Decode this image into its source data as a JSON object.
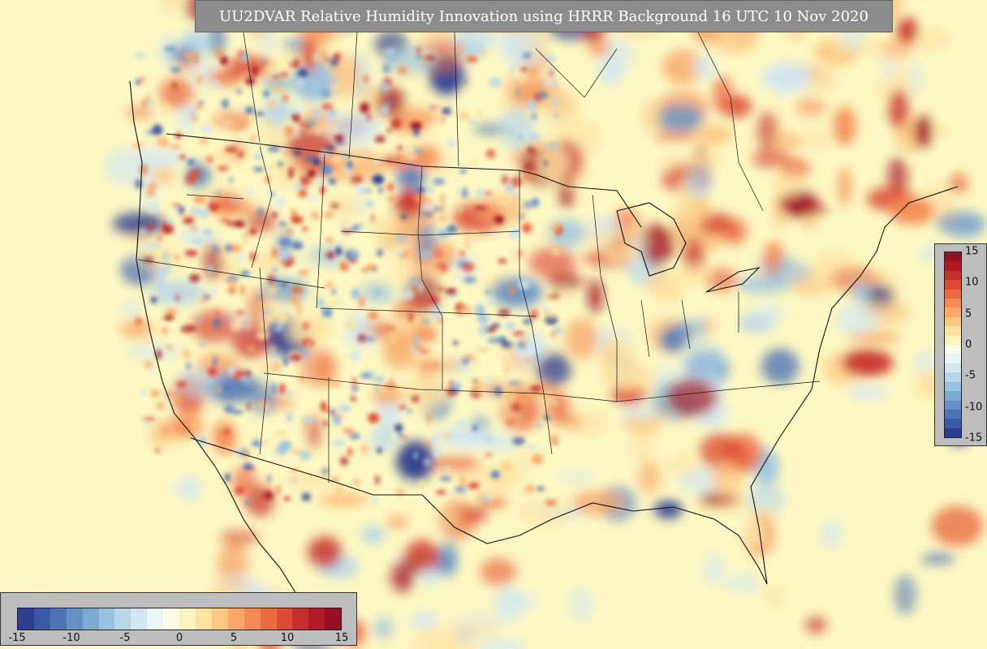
{
  "title": "UU2DVAR Relative Humidity Innovation using HRRR Background 16 UTC 10 Nov 2020",
  "colorbar": {
    "min": -15,
    "max": 15,
    "h_ticks": [
      "-15",
      "-10",
      "-5",
      "0",
      "5",
      "10",
      "15"
    ],
    "v_ticks": [
      "15",
      "10",
      "5",
      "0",
      "-5",
      "-10",
      "-15"
    ],
    "colors": [
      "#2c3f8f",
      "#3a5aa6",
      "#4d74b5",
      "#6390c5",
      "#7ba9d2",
      "#98c2df",
      "#b7d6e8",
      "#d3e7f0",
      "#eaf4f2",
      "#fbfbe6",
      "#fdf3c0",
      "#fde2a2",
      "#fcc783",
      "#f9a869",
      "#f48a53",
      "#ea6a42",
      "#dc4a34",
      "#c8302c",
      "#b01b27",
      "#951022"
    ]
  },
  "field": {
    "background": "#fdf8c3",
    "warm_colors": [
      "#fde2a2",
      "#fcc783",
      "#f9a869",
      "#f48a53",
      "#ea6a42",
      "#dc4a34",
      "#c8302c",
      "#a11222"
    ],
    "cool_colors": [
      "#d3e7f0",
      "#b7d6e8",
      "#98c2df",
      "#6390c5",
      "#4d74b5",
      "#2c3f8f"
    ],
    "outline_color": "#111111"
  }
}
